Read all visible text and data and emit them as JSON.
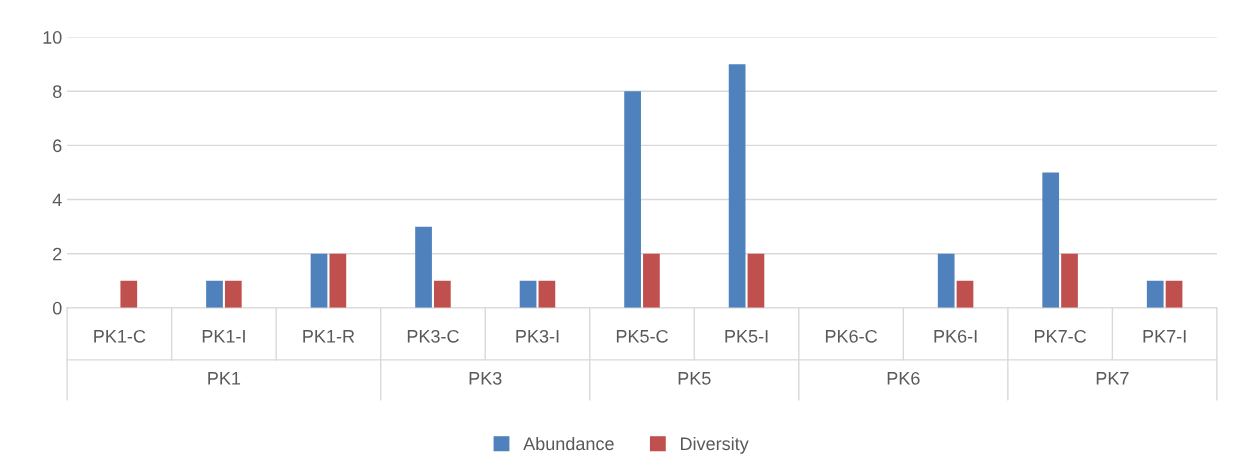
{
  "chart_data": {
    "type": "bar",
    "categories": [
      "PK1-C",
      "PK1-I",
      "PK1-R",
      "PK3-C",
      "PK3-I",
      "PK5-C",
      "PK5-I",
      "PK6-C",
      "PK6-I",
      "PK7-C",
      "PK7-I"
    ],
    "series": [
      {
        "name": "Abundance",
        "color": "#4f81bd",
        "values": [
          0,
          1,
          2,
          3,
          1,
          8,
          9,
          0,
          2,
          5,
          1
        ]
      },
      {
        "name": "Diversity",
        "color": "#c0504d",
        "values": [
          1,
          1,
          2,
          1,
          1,
          2,
          2,
          0,
          1,
          2,
          1
        ]
      }
    ],
    "annotations": [
      "PK1",
      "PK3",
      "PK5",
      "PK6",
      "PK7"
    ],
    "ylim": [
      0,
      10
    ],
    "yticks": [
      0,
      2,
      4,
      6,
      8,
      10
    ],
    "grid": "y",
    "legend": "bottom"
  }
}
